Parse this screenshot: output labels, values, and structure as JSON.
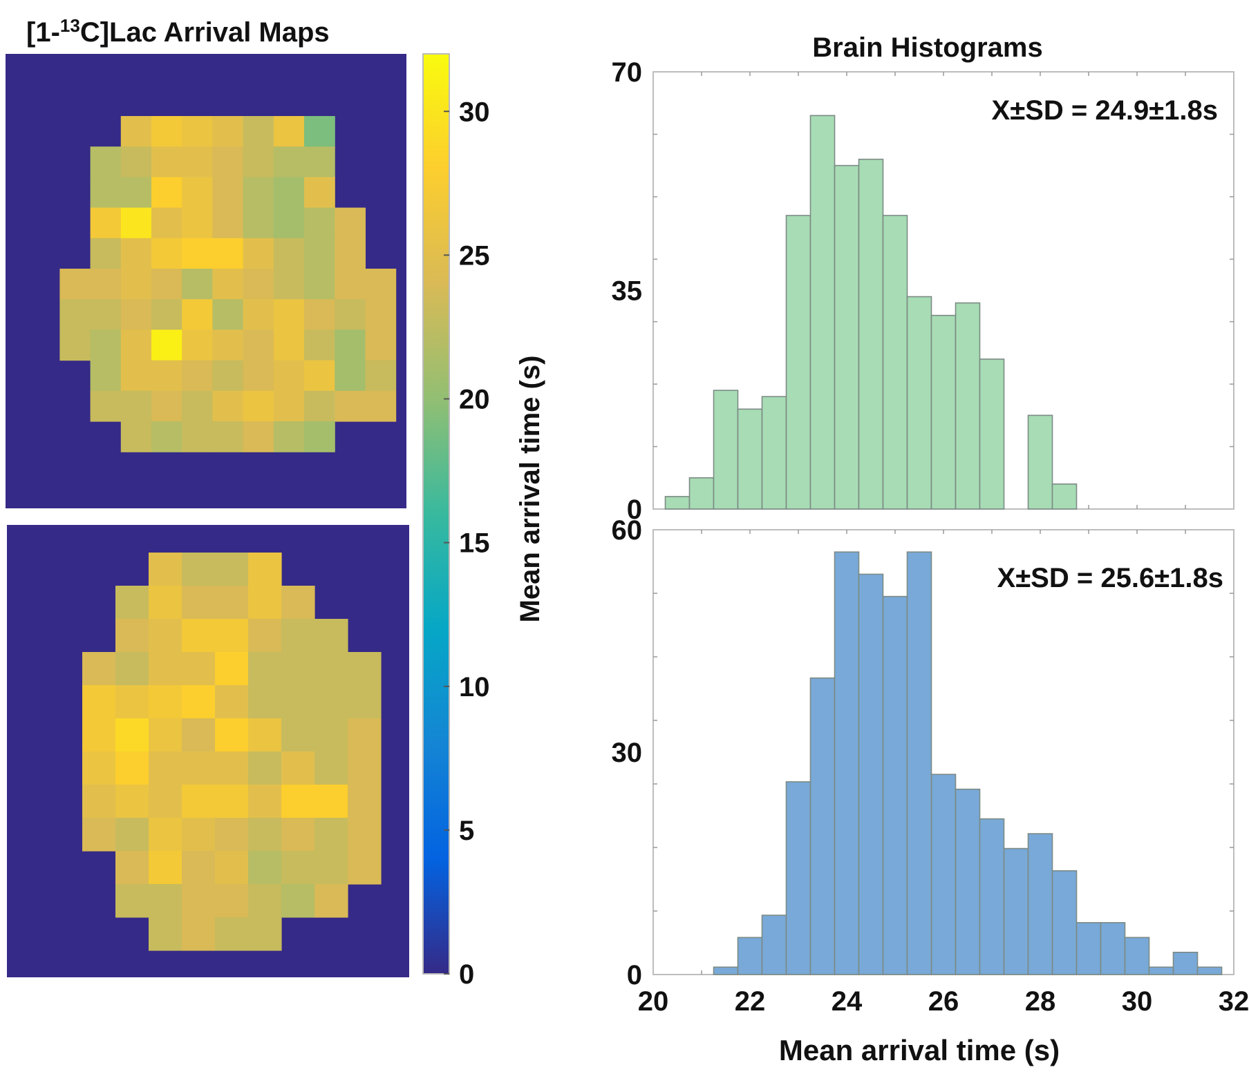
{
  "maps": {
    "title_prefix": "[1-",
    "title_sup": "13",
    "title_suffix": "C]Lac Arrival Maps",
    "background_color": "#352a87",
    "top_map": {
      "rows": [
        [
          0,
          0,
          0,
          0,
          25,
          27,
          26,
          25,
          23,
          26,
          19,
          0,
          0,
          0,
          0,
          0
        ],
        [
          0,
          0,
          0,
          22,
          23,
          25,
          25,
          24,
          23,
          22,
          22,
          0,
          0,
          0,
          0,
          0
        ],
        [
          0,
          0,
          0,
          22,
          22,
          28,
          26,
          24,
          22,
          21,
          25,
          0,
          0,
          0,
          0,
          0
        ],
        [
          0,
          0,
          0,
          27,
          30,
          25,
          26,
          24,
          22,
          21,
          22,
          24,
          0,
          0,
          0,
          0
        ],
        [
          0,
          0,
          0,
          23,
          25,
          27,
          28,
          28,
          25,
          23,
          22,
          24,
          0,
          0,
          0,
          0
        ],
        [
          0,
          0,
          24,
          24,
          25,
          24,
          22,
          25,
          24,
          23,
          22,
          24,
          24,
          0,
          0,
          0
        ],
        [
          0,
          0,
          23,
          23,
          24,
          23,
          27,
          22,
          25,
          26,
          24,
          23,
          24,
          0,
          0,
          0
        ],
        [
          0,
          0,
          23,
          22,
          25,
          31,
          26,
          25,
          24,
          26,
          23,
          21,
          24,
          0,
          0,
          0
        ],
        [
          0,
          0,
          0,
          22,
          25,
          25,
          24,
          23,
          24,
          25,
          26,
          21,
          23,
          0,
          0,
          0
        ],
        [
          0,
          0,
          0,
          23,
          23,
          24,
          23,
          25,
          26,
          25,
          23,
          24,
          24,
          0,
          0,
          0
        ],
        [
          0,
          0,
          0,
          0,
          23,
          22,
          23,
          23,
          24,
          22,
          21,
          0,
          0,
          0,
          0,
          0
        ]
      ]
    },
    "bottom_map": {
      "rows": [
        [
          0,
          0,
          0,
          0,
          25,
          23,
          23,
          26,
          0,
          0,
          0,
          0,
          0,
          0,
          0,
          0
        ],
        [
          0,
          0,
          0,
          23,
          26,
          24,
          24,
          26,
          24,
          0,
          0,
          0,
          0,
          0,
          0,
          0
        ],
        [
          0,
          0,
          0,
          24,
          25,
          27,
          27,
          24,
          23,
          23,
          0,
          0,
          0,
          0,
          0,
          0
        ],
        [
          0,
          0,
          24,
          23,
          25,
          25,
          28,
          23,
          23,
          23,
          23,
          0,
          0,
          0,
          0,
          0
        ],
        [
          0,
          0,
          27,
          26,
          27,
          28,
          25,
          23,
          23,
          23,
          23,
          0,
          0,
          0,
          0,
          0
        ],
        [
          0,
          0,
          27,
          29,
          26,
          24,
          28,
          26,
          23,
          23,
          24,
          0,
          0,
          0,
          0,
          0
        ],
        [
          0,
          0,
          26,
          28,
          25,
          25,
          25,
          23,
          25,
          23,
          24,
          0,
          0,
          0,
          0,
          0
        ],
        [
          0,
          0,
          25,
          26,
          25,
          27,
          27,
          25,
          28,
          28,
          24,
          0,
          0,
          0,
          0,
          0
        ],
        [
          0,
          0,
          24,
          23,
          26,
          25,
          24,
          23,
          24,
          23,
          24,
          0,
          0,
          0,
          0,
          0
        ],
        [
          0,
          0,
          0,
          24,
          27,
          24,
          25,
          22,
          23,
          23,
          24,
          0,
          0,
          0,
          0,
          0
        ],
        [
          0,
          0,
          0,
          23,
          23,
          24,
          24,
          23,
          22,
          24,
          0,
          0,
          0,
          0,
          0,
          0
        ],
        [
          0,
          0,
          0,
          0,
          23,
          24,
          23,
          23,
          0,
          0,
          0,
          0,
          0,
          0,
          0,
          0
        ]
      ]
    }
  },
  "colorbar": {
    "label": "Mean arrival time (s)",
    "min": 0,
    "max": 32,
    "ticks": [
      0,
      5,
      10,
      15,
      20,
      25,
      30
    ],
    "colormap": [
      "#352a87",
      "#0363e1",
      "#1485d4",
      "#06a7c6",
      "#38b99e",
      "#92bf73",
      "#d9ba56",
      "#fcce2e",
      "#f9fb0e"
    ]
  },
  "histograms_title": "Brain Histograms",
  "chart_data": [
    {
      "type": "bar",
      "title": "Brain Histograms",
      "xlabel": "",
      "ylabel": "",
      "xlim": [
        20,
        32
      ],
      "ylim": [
        0,
        70
      ],
      "yticks": [
        0,
        35,
        70
      ],
      "bin_width": 0.5,
      "bin_edges_start": 20.25,
      "counts": [
        2,
        5,
        19,
        16,
        18,
        47,
        63,
        55,
        56,
        47,
        34,
        31,
        33,
        24,
        0,
        15,
        4,
        0,
        0,
        0,
        0,
        0,
        0,
        0
      ],
      "color": "#a7dcb4",
      "annotation": "X±SD = 24.9±1.8s"
    },
    {
      "type": "bar",
      "title": "",
      "xlabel": "Mean arrival time (s)",
      "ylabel": "",
      "xlim": [
        20,
        32
      ],
      "ylim": [
        0,
        60
      ],
      "yticks": [
        0,
        30,
        60
      ],
      "xticks": [
        20,
        22,
        24,
        26,
        28,
        30,
        32
      ],
      "bin_width": 0.5,
      "bin_edges_start": 21.25,
      "counts": [
        1,
        5,
        8,
        26,
        40,
        57,
        54,
        51,
        57,
        27,
        25,
        21,
        17,
        19,
        14,
        7,
        7,
        5,
        1,
        3,
        1
      ],
      "color": "#78a9d8",
      "annotation": "X±SD = 25.6±1.8s"
    }
  ]
}
